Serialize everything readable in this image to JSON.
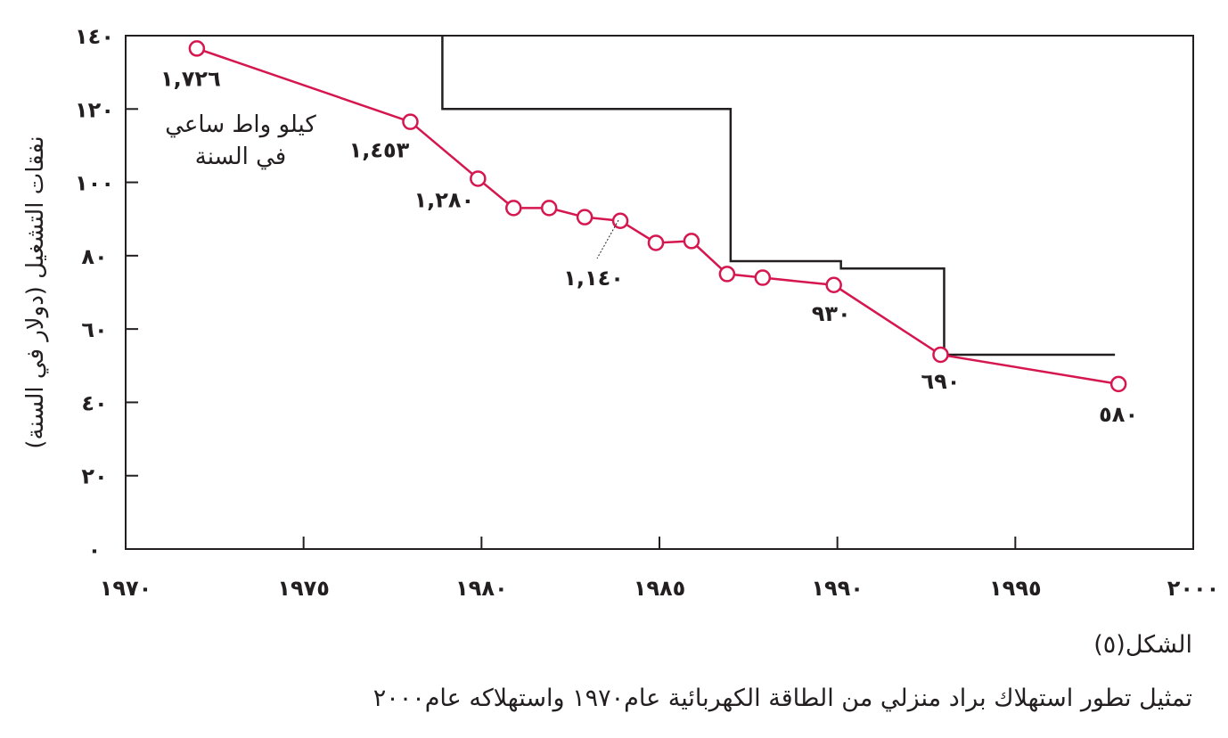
{
  "chart_data": {
    "type": "line",
    "ylabel": "نفقات التشغيل (دولار في السنة)",
    "xlim": [
      1970,
      2000
    ],
    "ylim": [
      0,
      140
    ],
    "x_ticks": [
      1970,
      1975,
      1980,
      1985,
      1990,
      1995,
      2000
    ],
    "x_tick_labels": [
      "١٩٧٠",
      "١٩٧٥",
      "١٩٨٠",
      "١٩٨٥",
      "١٩٩٠",
      "١٩٩٥",
      "٢٠٠٠"
    ],
    "y_ticks": [
      0,
      20,
      40,
      60,
      80,
      100,
      120,
      140
    ],
    "y_tick_labels": [
      "٠",
      "٢٠",
      "٤٠",
      "٦٠",
      "٨٠",
      "١٠٠",
      "١٢٠",
      "١٤٠"
    ],
    "grid": false,
    "series": [
      {
        "color": "#d6164f",
        "marker": "open-circle",
        "points": [
          {
            "x": 1972,
            "y": 136.5
          },
          {
            "x": 1978,
            "y": 116.5
          },
          {
            "x": 1979.9,
            "y": 101
          },
          {
            "x": 1980.9,
            "y": 93
          },
          {
            "x": 1981.9,
            "y": 93
          },
          {
            "x": 1982.9,
            "y": 90.5
          },
          {
            "x": 1983.9,
            "y": 89.5
          },
          {
            "x": 1984.9,
            "y": 83.5
          },
          {
            "x": 1985.9,
            "y": 84
          },
          {
            "x": 1986.9,
            "y": 75
          },
          {
            "x": 1987.9,
            "y": 74
          },
          {
            "x": 1989.9,
            "y": 72
          },
          {
            "x": 1992.9,
            "y": 53
          },
          {
            "x": 1997.9,
            "y": 45
          }
        ]
      },
      {
        "color": "#231f20",
        "marker": "none",
        "step": true,
        "points": [
          {
            "x": 1978.9,
            "y": 140
          },
          {
            "x": 1978.9,
            "y": 120
          },
          {
            "x": 1987,
            "y": 120
          },
          {
            "x": 1987,
            "y": 78.5
          },
          {
            "x": 1990.1,
            "y": 78.5
          },
          {
            "x": 1990.1,
            "y": 76.5
          },
          {
            "x": 1993,
            "y": 76.5
          },
          {
            "x": 1993,
            "y": 53
          },
          {
            "x": 1997.8,
            "y": 53
          }
        ]
      }
    ],
    "data_labels": [
      {
        "text": "١,٧٢٦",
        "x": 1972,
        "y": 136.5
      },
      {
        "text": "١,٤٥٣",
        "x": 1978,
        "y": 116.5
      },
      {
        "text": "١,٢٨٠",
        "x": 1979.9,
        "y": 101
      },
      {
        "text": "١,١٤٠",
        "x": 1983.9,
        "y": 89.5
      },
      {
        "text": "٩٣٠",
        "x": 1989.9,
        "y": 72
      },
      {
        "text": "٦٩٠",
        "x": 1992.9,
        "y": 53
      },
      {
        "text": "٥٨٠",
        "x": 1997.9,
        "y": 45
      }
    ],
    "annotation": [
      "كيلو واط ساعي",
      "في السنة"
    ]
  },
  "figure_label": "الشكل(٥)",
  "caption": "تمثيل تطور استهلاك براد منزلي من الطاقة الكهربائية عام١٩٧٠ واستهلاكه عام٢٠٠٠"
}
